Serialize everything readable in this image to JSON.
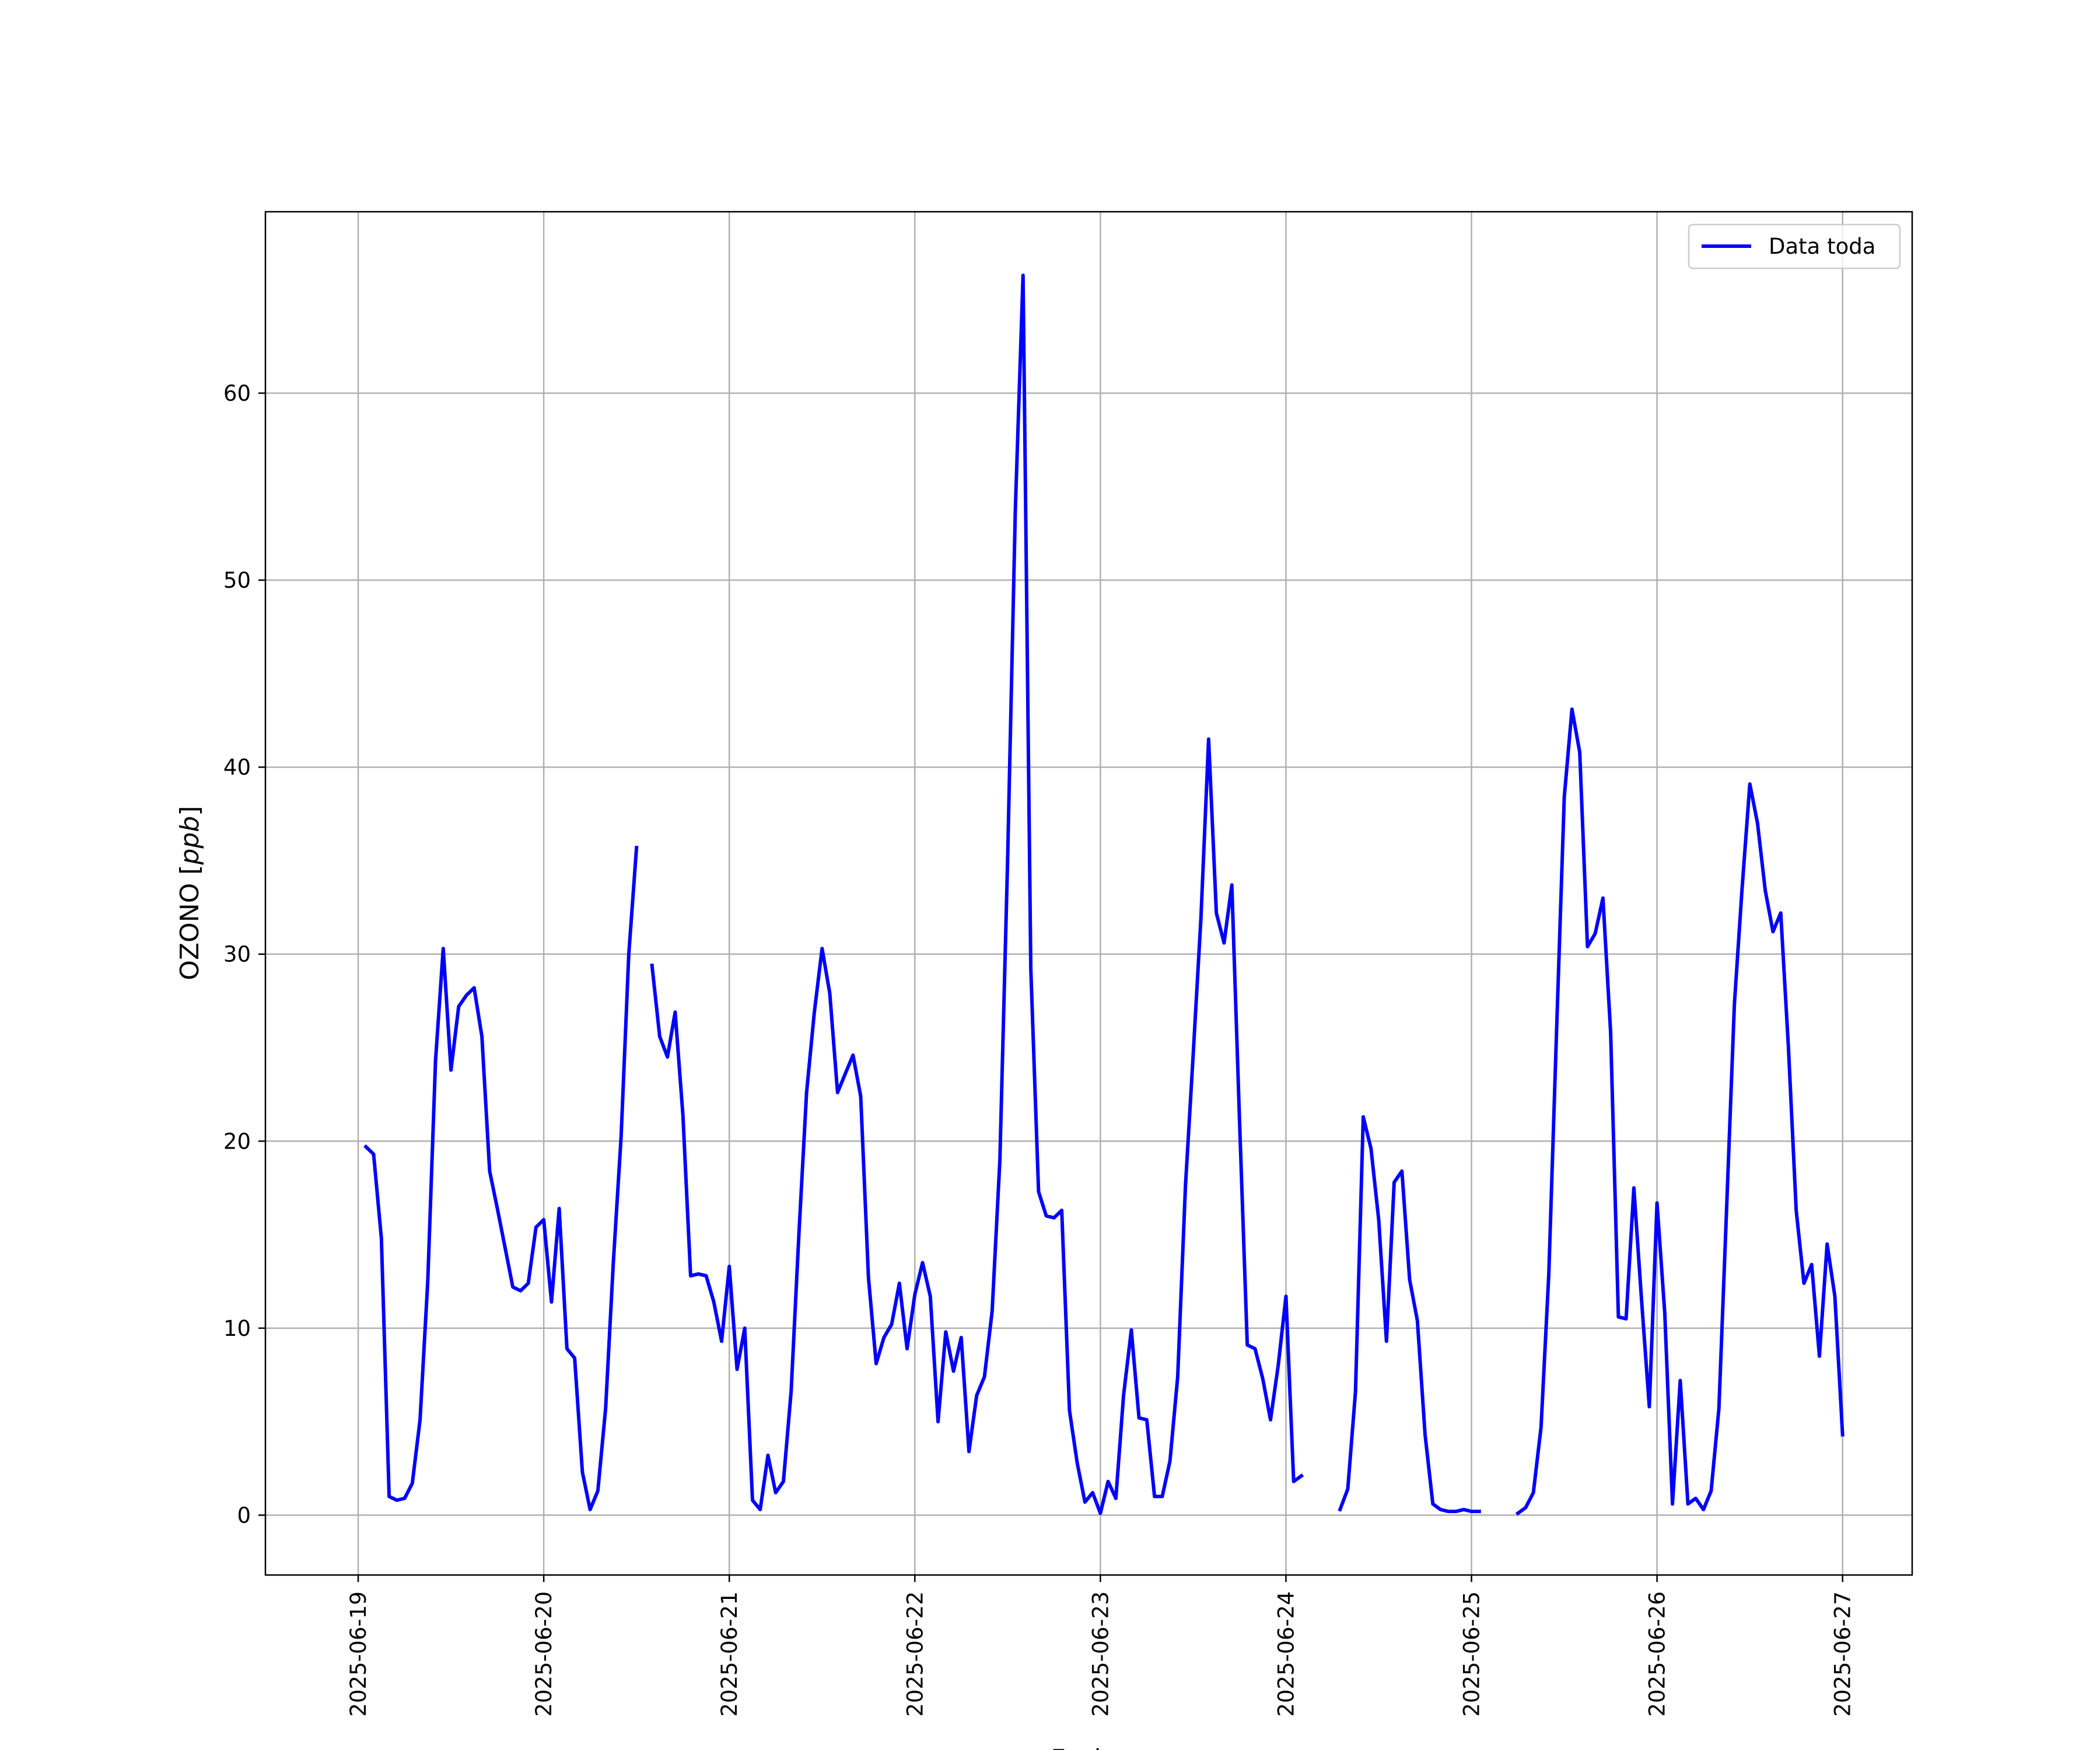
{
  "chart_data": {
    "type": "line",
    "title": "",
    "xlabel": "Fecha",
    "ylabel_main": "OZONO",
    "ylabel_unit": "ppb",
    "grid": true,
    "legend_position": "top-right",
    "x_ticks": [
      "2025-06-19",
      "2025-06-20",
      "2025-06-21",
      "2025-06-22",
      "2025-06-23",
      "2025-06-24",
      "2025-06-25",
      "2025-06-26",
      "2025-06-27"
    ],
    "y_ticks": [
      0,
      10,
      20,
      30,
      40,
      50,
      60
    ],
    "xlim": [
      "2025-06-18 12:00",
      "2025-06-27 09:00"
    ],
    "ylim": [
      -3.2,
      69.7
    ],
    "colors": {
      "line": "#0000ff",
      "grid": "#b0b0b0"
    },
    "series": [
      {
        "name": "Data toda",
        "segments": [
          [
            [
              "2025-06-19 01:00",
              19.7
            ],
            [
              "2025-06-19 02:00",
              19.3
            ],
            [
              "2025-06-19 03:00",
              14.8
            ],
            [
              "2025-06-19 04:00",
              1.0
            ],
            [
              "2025-06-19 05:00",
              0.8
            ],
            [
              "2025-06-19 06:00",
              0.9
            ],
            [
              "2025-06-19 07:00",
              1.7
            ],
            [
              "2025-06-19 08:00",
              5.1
            ],
            [
              "2025-06-19 09:00",
              12.5
            ],
            [
              "2025-06-19 10:00",
              24.3
            ],
            [
              "2025-06-19 11:00",
              30.3
            ],
            [
              "2025-06-19 12:00",
              23.8
            ],
            [
              "2025-06-19 13:00",
              27.2
            ],
            [
              "2025-06-19 14:00",
              27.8
            ],
            [
              "2025-06-19 15:00",
              28.2
            ],
            [
              "2025-06-19 16:00",
              25.6
            ],
            [
              "2025-06-19 17:00",
              18.4
            ],
            [
              "2025-06-19 18:00",
              16.4
            ],
            [
              "2025-06-19 19:00",
              14.3
            ],
            [
              "2025-06-19 20:00",
              12.2
            ],
            [
              "2025-06-19 21:00",
              12.0
            ],
            [
              "2025-06-19 22:00",
              12.4
            ],
            [
              "2025-06-19 23:00",
              15.4
            ],
            [
              "2025-06-20 00:00",
              15.8
            ],
            [
              "2025-06-20 01:00",
              11.4
            ],
            [
              "2025-06-20 02:00",
              16.4
            ],
            [
              "2025-06-20 03:00",
              8.9
            ],
            [
              "2025-06-20 04:00",
              8.4
            ],
            [
              "2025-06-20 05:00",
              2.3
            ],
            [
              "2025-06-20 06:00",
              0.3
            ],
            [
              "2025-06-20 07:00",
              1.3
            ],
            [
              "2025-06-20 08:00",
              5.7
            ],
            [
              "2025-06-20 09:00",
              13.5
            ],
            [
              "2025-06-20 10:00",
              20.2
            ],
            [
              "2025-06-20 11:00",
              30.0
            ],
            [
              "2025-06-20 12:00",
              35.7
            ]
          ],
          [
            [
              "2025-06-20 14:00",
              29.4
            ],
            [
              "2025-06-20 15:00",
              25.6
            ],
            [
              "2025-06-20 16:00",
              24.5
            ],
            [
              "2025-06-20 17:00",
              26.9
            ],
            [
              "2025-06-20 18:00",
              21.4
            ],
            [
              "2025-06-20 19:00",
              12.8
            ],
            [
              "2025-06-20 20:00",
              12.9
            ],
            [
              "2025-06-20 21:00",
              12.8
            ],
            [
              "2025-06-20 22:00",
              11.4
            ],
            [
              "2025-06-20 23:00",
              9.3
            ],
            [
              "2025-06-21 00:00",
              13.3
            ],
            [
              "2025-06-21 01:00",
              7.8
            ],
            [
              "2025-06-21 02:00",
              10.0
            ],
            [
              "2025-06-21 03:00",
              0.8
            ],
            [
              "2025-06-21 04:00",
              0.3
            ],
            [
              "2025-06-21 05:00",
              3.2
            ],
            [
              "2025-06-21 06:00",
              1.2
            ],
            [
              "2025-06-21 07:00",
              1.8
            ],
            [
              "2025-06-21 08:00",
              6.6
            ],
            [
              "2025-06-21 09:00",
              15.0
            ],
            [
              "2025-06-21 10:00",
              22.6
            ],
            [
              "2025-06-21 11:00",
              26.9
            ],
            [
              "2025-06-21 12:00",
              30.3
            ],
            [
              "2025-06-21 13:00",
              27.9
            ],
            [
              "2025-06-21 14:00",
              22.6
            ],
            [
              "2025-06-21 15:00",
              23.6
            ],
            [
              "2025-06-21 16:00",
              24.6
            ],
            [
              "2025-06-21 17:00",
              22.4
            ],
            [
              "2025-06-21 18:00",
              12.7
            ],
            [
              "2025-06-21 19:00",
              8.1
            ],
            [
              "2025-06-21 20:00",
              9.5
            ],
            [
              "2025-06-21 21:00",
              10.2
            ],
            [
              "2025-06-21 22:00",
              12.4
            ],
            [
              "2025-06-21 23:00",
              8.9
            ],
            [
              "2025-06-22 00:00",
              11.8
            ],
            [
              "2025-06-22 01:00",
              13.5
            ],
            [
              "2025-06-22 02:00",
              11.7
            ],
            [
              "2025-06-22 03:00",
              5.0
            ],
            [
              "2025-06-22 04:00",
              9.8
            ],
            [
              "2025-06-22 05:00",
              7.7
            ],
            [
              "2025-06-22 06:00",
              9.5
            ],
            [
              "2025-06-22 07:00",
              3.4
            ],
            [
              "2025-06-22 08:00",
              6.4
            ],
            [
              "2025-06-22 09:00",
              7.4
            ],
            [
              "2025-06-22 10:00",
              10.9
            ],
            [
              "2025-06-22 11:00",
              19.0
            ],
            [
              "2025-06-22 12:00",
              35.0
            ],
            [
              "2025-06-22 13:00",
              53.8
            ],
            [
              "2025-06-22 14:00",
              66.3
            ],
            [
              "2025-06-22 15:00",
              29.2
            ],
            [
              "2025-06-22 16:00",
              17.3
            ],
            [
              "2025-06-22 17:00",
              16.0
            ],
            [
              "2025-06-22 18:00",
              15.9
            ],
            [
              "2025-06-22 19:00",
              16.3
            ],
            [
              "2025-06-22 20:00",
              5.6
            ],
            [
              "2025-06-22 21:00",
              2.8
            ],
            [
              "2025-06-22 22:00",
              0.7
            ],
            [
              "2025-06-22 23:00",
              1.2
            ],
            [
              "2025-06-23 00:00",
              0.1
            ],
            [
              "2025-06-23 01:00",
              1.8
            ],
            [
              "2025-06-23 02:00",
              0.9
            ],
            [
              "2025-06-23 03:00",
              6.4
            ],
            [
              "2025-06-23 04:00",
              9.9
            ],
            [
              "2025-06-23 05:00",
              5.2
            ],
            [
              "2025-06-23 06:00",
              5.1
            ],
            [
              "2025-06-23 07:00",
              1.0
            ],
            [
              "2025-06-23 08:00",
              1.0
            ],
            [
              "2025-06-23 09:00",
              2.9
            ],
            [
              "2025-06-23 10:00",
              7.4
            ],
            [
              "2025-06-23 11:00",
              17.6
            ],
            [
              "2025-06-23 12:00",
              24.6
            ],
            [
              "2025-06-23 13:00",
              31.9
            ],
            [
              "2025-06-23 14:00",
              41.5
            ],
            [
              "2025-06-23 15:00",
              32.2
            ],
            [
              "2025-06-23 16:00",
              30.6
            ],
            [
              "2025-06-23 17:00",
              33.7
            ],
            [
              "2025-06-23 18:00",
              21.1
            ],
            [
              "2025-06-23 19:00",
              9.1
            ],
            [
              "2025-06-23 20:00",
              8.9
            ],
            [
              "2025-06-23 21:00",
              7.3
            ],
            [
              "2025-06-23 22:00",
              5.1
            ],
            [
              "2025-06-23 23:00",
              8.0
            ],
            [
              "2025-06-24 00:00",
              11.7
            ],
            [
              "2025-06-24 01:00",
              1.8
            ],
            [
              "2025-06-24 02:00",
              2.1
            ]
          ],
          [
            [
              "2025-06-24 07:00",
              0.3
            ],
            [
              "2025-06-24 08:00",
              1.4
            ],
            [
              "2025-06-24 09:00",
              6.6
            ],
            [
              "2025-06-24 10:00",
              21.3
            ],
            [
              "2025-06-24 11:00",
              19.6
            ],
            [
              "2025-06-24 12:00",
              15.8
            ],
            [
              "2025-06-24 13:00",
              9.3
            ],
            [
              "2025-06-24 14:00",
              17.8
            ],
            [
              "2025-06-24 15:00",
              18.4
            ],
            [
              "2025-06-24 16:00",
              12.6
            ],
            [
              "2025-06-24 17:00",
              10.4
            ],
            [
              "2025-06-24 18:00",
              4.3
            ],
            [
              "2025-06-24 19:00",
              0.6
            ],
            [
              "2025-06-24 20:00",
              0.3
            ],
            [
              "2025-06-24 21:00",
              0.2
            ],
            [
              "2025-06-24 22:00",
              0.2
            ],
            [
              "2025-06-24 23:00",
              0.3
            ],
            [
              "2025-06-25 00:00",
              0.2
            ],
            [
              "2025-06-25 01:00",
              0.2
            ]
          ],
          [
            [
              "2025-06-25 06:00",
              0.1
            ],
            [
              "2025-06-25 07:00",
              0.4
            ],
            [
              "2025-06-25 08:00",
              1.2
            ],
            [
              "2025-06-25 09:00",
              4.7
            ],
            [
              "2025-06-25 10:00",
              12.9
            ],
            [
              "2025-06-25 11:00",
              25.8
            ],
            [
              "2025-06-25 12:00",
              38.4
            ],
            [
              "2025-06-25 13:00",
              43.1
            ],
            [
              "2025-06-25 14:00",
              40.8
            ],
            [
              "2025-06-25 15:00",
              30.4
            ],
            [
              "2025-06-25 16:00",
              31.1
            ],
            [
              "2025-06-25 17:00",
              33.0
            ],
            [
              "2025-06-25 18:00",
              25.8
            ],
            [
              "2025-06-25 19:00",
              10.6
            ],
            [
              "2025-06-25 20:00",
              10.5
            ],
            [
              "2025-06-25 21:00",
              17.5
            ],
            [
              "2025-06-25 22:00",
              11.5
            ],
            [
              "2025-06-25 23:00",
              5.8
            ],
            [
              "2025-06-26 00:00",
              16.7
            ],
            [
              "2025-06-26 01:00",
              10.8
            ],
            [
              "2025-06-26 02:00",
              0.6
            ],
            [
              "2025-06-26 03:00",
              7.2
            ],
            [
              "2025-06-26 04:00",
              0.6
            ],
            [
              "2025-06-26 05:00",
              0.9
            ],
            [
              "2025-06-26 06:00",
              0.3
            ],
            [
              "2025-06-26 07:00",
              1.3
            ],
            [
              "2025-06-26 08:00",
              5.7
            ],
            [
              "2025-06-26 09:00",
              16.4
            ],
            [
              "2025-06-26 10:00",
              27.3
            ],
            [
              "2025-06-26 11:00",
              33.5
            ],
            [
              "2025-06-26 12:00",
              39.1
            ],
            [
              "2025-06-26 13:00",
              37.0
            ],
            [
              "2025-06-26 14:00",
              33.4
            ],
            [
              "2025-06-26 15:00",
              31.2
            ],
            [
              "2025-06-26 16:00",
              32.2
            ],
            [
              "2025-06-26 17:00",
              25.0
            ],
            [
              "2025-06-26 18:00",
              16.3
            ],
            [
              "2025-06-26 19:00",
              12.4
            ],
            [
              "2025-06-26 20:00",
              13.4
            ],
            [
              "2025-06-26 21:00",
              8.5
            ],
            [
              "2025-06-26 22:00",
              14.5
            ],
            [
              "2025-06-26 23:00",
              11.7
            ],
            [
              "2025-06-27 00:00",
              4.3
            ]
          ]
        ]
      }
    ]
  }
}
